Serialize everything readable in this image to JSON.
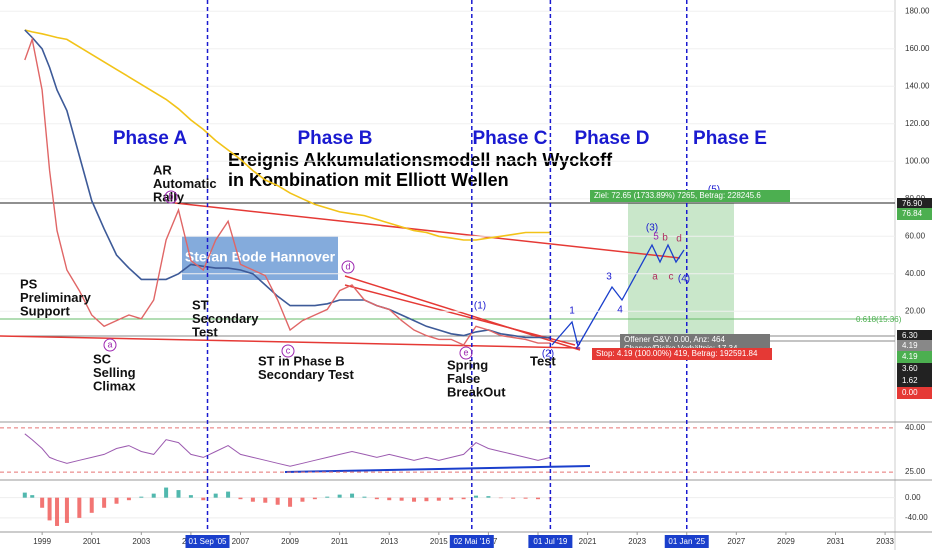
{
  "chart_data": {
    "type": "line",
    "title_lines": [
      "Ereignis Akkumulationsmodell nach Wyckoff",
      "in Kombination mit Elliott Wellen"
    ],
    "watermark": "Stefan Bode Hannover",
    "phases": [
      "Phase A",
      "Phase B",
      "Phase C",
      "Phase D",
      "Phase E"
    ],
    "notes": [
      [
        "AR",
        "Automatic",
        "Rally"
      ],
      [
        "PS",
        "Preliminary",
        "Support"
      ],
      [
        "SC",
        "Selling",
        "Climax"
      ],
      [
        "ST",
        "Secondary",
        "Test"
      ],
      [
        "ST in Phase B",
        "Secondary Test"
      ],
      [
        "Spring",
        "False",
        "BreakOut"
      ],
      [
        "Test"
      ]
    ],
    "wyckoff_points": [
      "a",
      "b",
      "c",
      "d",
      "e"
    ],
    "wave_labels": [
      "(1)",
      "(2)",
      "1",
      "2",
      "3",
      "4",
      "(3)",
      "(4)",
      "(5)",
      "5",
      "b",
      "a",
      "c",
      "d"
    ],
    "trade_labels": [
      "Ziel: 72.65 (1733.89%) 7265, Betrag: 228245.6",
      "Offener G&V: 0.00, Anz: 464",
      "Chance/Risiko Verhältnis: 17.34",
      "Stop: 4.19 (100.00%) 419, Betrag: 192591.84",
      "0.618(15.36)"
    ],
    "x": [
      1998.3,
      1998.6,
      1999,
      1999.3,
      1999.6,
      2000,
      2000.5,
      2001,
      2001.5,
      2002,
      2002.5,
      2003,
      2003.5,
      2004,
      2004.5,
      2005,
      2005.5,
      2006,
      2006.5,
      2007,
      2007.5,
      2008,
      2008.5,
      2009,
      2009.5,
      2010,
      2010.5,
      2011,
      2011.5,
      2012,
      2012.5,
      2013,
      2013.5,
      2014,
      2014.5,
      2015,
      2015.5,
      2016,
      2016.5,
      2017,
      2017.5,
      2018,
      2018.5,
      2019,
      2019.5
    ],
    "series": [
      {
        "color": "#e06666",
        "values": [
          154,
          165,
          138,
          95,
          63,
          42,
          31,
          18,
          12,
          15,
          18,
          16,
          26,
          58,
          74,
          47,
          42,
          58,
          68,
          45,
          42,
          39,
          26,
          10,
          15,
          18,
          21,
          31,
          34,
          26,
          23,
          21,
          15,
          10,
          7,
          5,
          5,
          2,
          12,
          10,
          7,
          6,
          5,
          3,
          3
        ]
      },
      {
        "color": "#3d5a98",
        "values": [
          170,
          166,
          160,
          150,
          138,
          127,
          103,
          79,
          64,
          50,
          43,
          37,
          37,
          37,
          40,
          45,
          44,
          43,
          43,
          42,
          40,
          34,
          28,
          23,
          23,
          23,
          24,
          26,
          26,
          26,
          23,
          21,
          18,
          15,
          12,
          10,
          8,
          7,
          9,
          10,
          8,
          7,
          6,
          6,
          6
        ]
      },
      {
        "color": "#f2c318",
        "values": [
          170,
          169,
          168,
          167,
          166,
          165,
          161,
          157,
          153,
          149,
          145,
          141,
          137,
          133,
          128,
          122,
          117,
          111,
          106,
          101,
          95,
          90,
          87,
          83,
          80,
          77,
          75,
          73,
          72,
          71,
          69,
          67,
          65,
          63,
          62,
          60,
          59,
          58,
          58,
          59,
          60,
          61,
          62,
          62,
          62
        ]
      }
    ],
    "rsi": [
      38,
      36,
      33,
      30,
      29,
      28,
      29,
      30,
      31,
      33,
      34,
      32,
      31,
      36,
      35,
      31,
      30,
      32,
      34,
      31,
      30,
      29,
      28,
      27,
      28,
      29,
      30,
      31,
      32,
      31,
      30,
      31,
      30,
      29,
      30,
      29,
      30,
      31,
      35,
      33,
      32,
      31,
      30,
      29,
      30
    ],
    "macd": [
      10,
      5,
      -20,
      -45,
      -56,
      -50,
      -40,
      -30,
      -20,
      -12,
      -5,
      2,
      8,
      20,
      15,
      5,
      -5,
      8,
      12,
      -3,
      -8,
      -10,
      -14,
      -18,
      -8,
      -3,
      2,
      6,
      8,
      2,
      -3,
      -5,
      -6,
      -8,
      -7,
      -6,
      -4,
      -3,
      4,
      3,
      -1,
      -2,
      -2,
      -3,
      -1
    ],
    "xlim": [
      1997.3,
      2033.4
    ],
    "ylim": [
      -38,
      186
    ],
    "rsi_lim": [
      23,
      42
    ],
    "macd_lim": [
      -64,
      31
    ],
    "xticks": [
      1999,
      2001,
      2003,
      2005,
      2007,
      2009,
      2011,
      2013,
      2015,
      2017,
      2019,
      2021,
      2023,
      2025,
      2027,
      2029,
      2031,
      2033
    ],
    "yticks": [
      {
        "value": 20,
        "label": "20.00"
      },
      {
        "value": 40,
        "label": "40.00"
      },
      {
        "value": 60,
        "label": "60.00"
      },
      {
        "value": 80,
        "label": "80.00"
      },
      {
        "value": 100,
        "label": "100.00"
      },
      {
        "value": 120,
        "label": "120.00"
      },
      {
        "value": 140,
        "label": "140.00"
      },
      {
        "value": 160,
        "label": "160.00"
      },
      {
        "value": 180,
        "label": "180.00"
      }
    ],
    "rsi_ticks": [
      {
        "value": 40,
        "label": "40.00"
      },
      {
        "value": 25,
        "label": "25.00"
      }
    ],
    "macd_ticks": [
      {
        "value": 0,
        "label": "0.00"
      },
      {
        "value": -40,
        "label": "-40.00"
      }
    ],
    "date_markers": [
      {
        "value": 2005.67,
        "label": "01 Sep '05"
      },
      {
        "value": 2016.33,
        "label": "02 Mai '16"
      },
      {
        "value": 2019.5,
        "label": "01 Jul '19"
      },
      {
        "value": 2025,
        "label": "01 Jan '25"
      }
    ],
    "price_markers": [
      {
        "value": 76.9,
        "label": "76.90"
      },
      {
        "value": 76.84,
        "label": "76.84"
      },
      {
        "value": 6.3,
        "label": "6.30"
      },
      {
        "value": 4.19,
        "label": "4.19"
      },
      {
        "value": 4.19,
        "label": "4.19"
      },
      {
        "value": 3.6,
        "label": "3.60"
      },
      {
        "value": 1.62,
        "label": "1.62"
      },
      {
        "value": 0,
        "label": "0.00"
      }
    ]
  }
}
